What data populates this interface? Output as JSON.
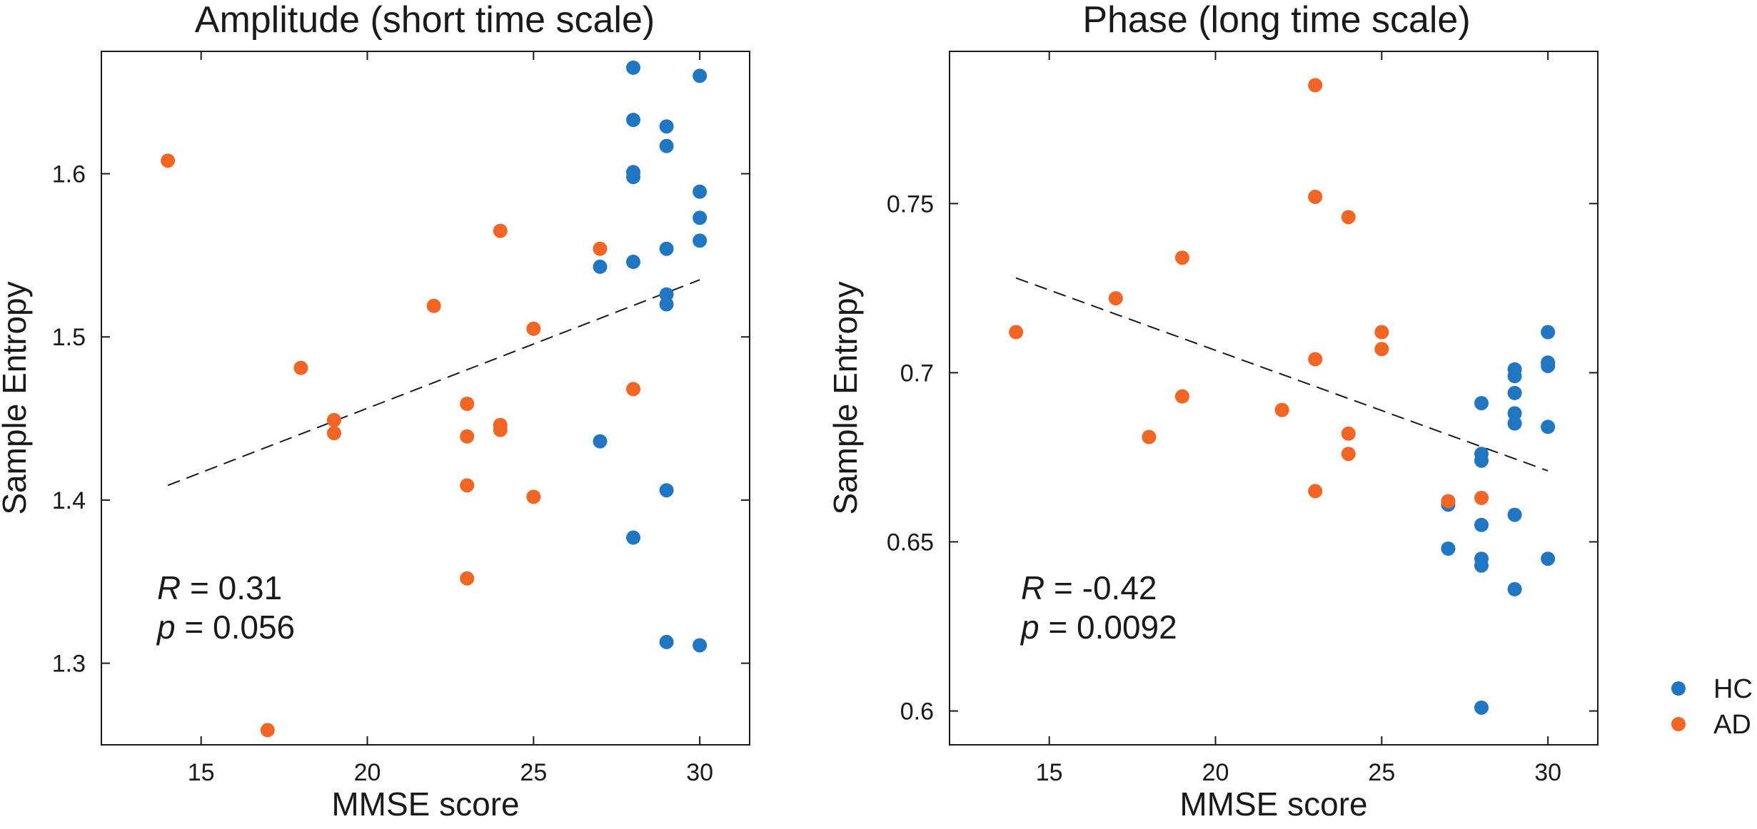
{
  "colors": {
    "HC": "#1f77c4",
    "AD": "#f26522"
  },
  "legend": [
    {
      "key": "HC",
      "label": "HC"
    },
    {
      "key": "AD",
      "label": "AD"
    }
  ],
  "chart_data": [
    {
      "type": "scatter",
      "title": "Amplitude (short time scale)",
      "xlabel": "MMSE score",
      "ylabel": "Sample Entropy",
      "xlim": [
        12,
        31.5
      ],
      "ylim": [
        1.25,
        1.675
      ],
      "xticks": [
        15,
        20,
        25,
        30
      ],
      "xtick_labels": [
        "15",
        "20",
        "25",
        "30"
      ],
      "yticks": [
        1.3,
        1.4,
        1.5,
        1.6
      ],
      "ytick_labels": [
        "1.3",
        "1.4",
        "1.5",
        "1.6"
      ],
      "stats": {
        "r_label": "R",
        "r_value": "= 0.31",
        "p_label": "p",
        "p_value": "= 0.056"
      },
      "fit_line": {
        "x": [
          14,
          30
        ],
        "y": [
          1.409,
          1.535
        ]
      },
      "series": [
        {
          "name": "HC",
          "points": [
            [
              28,
              1.665
            ],
            [
              30,
              1.66
            ],
            [
              28,
              1.633
            ],
            [
              29,
              1.629
            ],
            [
              29,
              1.617
            ],
            [
              28,
              1.601
            ],
            [
              28,
              1.598
            ],
            [
              30,
              1.589
            ],
            [
              30,
              1.573
            ],
            [
              30,
              1.559
            ],
            [
              29,
              1.554
            ],
            [
              28,
              1.546
            ],
            [
              27,
              1.543
            ],
            [
              29,
              1.526
            ],
            [
              29,
              1.52
            ],
            [
              27,
              1.436
            ],
            [
              29,
              1.406
            ],
            [
              28,
              1.377
            ],
            [
              29,
              1.313
            ],
            [
              30,
              1.311
            ]
          ]
        },
        {
          "name": "AD",
          "points": [
            [
              14,
              1.608
            ],
            [
              24,
              1.565
            ],
            [
              27,
              1.554
            ],
            [
              22,
              1.519
            ],
            [
              25,
              1.505
            ],
            [
              18,
              1.481
            ],
            [
              28,
              1.468
            ],
            [
              23,
              1.459
            ],
            [
              19,
              1.449
            ],
            [
              24,
              1.446
            ],
            [
              24,
              1.443
            ],
            [
              19,
              1.441
            ],
            [
              23,
              1.439
            ],
            [
              23,
              1.409
            ],
            [
              25,
              1.402
            ],
            [
              23,
              1.352
            ],
            [
              17,
              1.259
            ]
          ]
        }
      ]
    },
    {
      "type": "scatter",
      "title": "Phase (long time scale)",
      "xlabel": "MMSE score",
      "ylabel": "Sample Entropy",
      "xlim": [
        12,
        31.5
      ],
      "ylim": [
        0.59,
        0.795
      ],
      "xticks": [
        15,
        20,
        25,
        30
      ],
      "xtick_labels": [
        "15",
        "20",
        "25",
        "30"
      ],
      "yticks": [
        0.6,
        0.65,
        0.7,
        0.75
      ],
      "ytick_labels": [
        "0.6",
        "0.65",
        "0.7",
        "0.75"
      ],
      "stats": {
        "r_label": "R",
        "r_value": "= -0.42",
        "p_label": "p",
        "p_value": "= 0.0092"
      },
      "fit_line": {
        "x": [
          14,
          30
        ],
        "y": [
          0.728,
          0.671
        ]
      },
      "series": [
        {
          "name": "HC",
          "points": [
            [
              30,
              0.712
            ],
            [
              30,
              0.703
            ],
            [
              30,
              0.702
            ],
            [
              29,
              0.701
            ],
            [
              29,
              0.699
            ],
            [
              29,
              0.694
            ],
            [
              28,
              0.691
            ],
            [
              29,
              0.688
            ],
            [
              29,
              0.685
            ],
            [
              30,
              0.684
            ],
            [
              28,
              0.676
            ],
            [
              28,
              0.674
            ],
            [
              27,
              0.662
            ],
            [
              27,
              0.661
            ],
            [
              29,
              0.658
            ],
            [
              28,
              0.655
            ],
            [
              27,
              0.648
            ],
            [
              30,
              0.645
            ],
            [
              28,
              0.645
            ],
            [
              28,
              0.643
            ],
            [
              29,
              0.636
            ],
            [
              28,
              0.601
            ]
          ]
        },
        {
          "name": "AD",
          "points": [
            [
              23,
              0.785
            ],
            [
              23,
              0.752
            ],
            [
              24,
              0.746
            ],
            [
              19,
              0.734
            ],
            [
              17,
              0.722
            ],
            [
              14,
              0.712
            ],
            [
              25,
              0.712
            ],
            [
              25,
              0.707
            ],
            [
              23,
              0.704
            ],
            [
              19,
              0.693
            ],
            [
              22,
              0.689
            ],
            [
              24,
              0.682
            ],
            [
              18,
              0.681
            ],
            [
              24,
              0.676
            ],
            [
              23,
              0.665
            ],
            [
              28,
              0.663
            ],
            [
              27,
              0.662
            ]
          ]
        }
      ]
    }
  ]
}
